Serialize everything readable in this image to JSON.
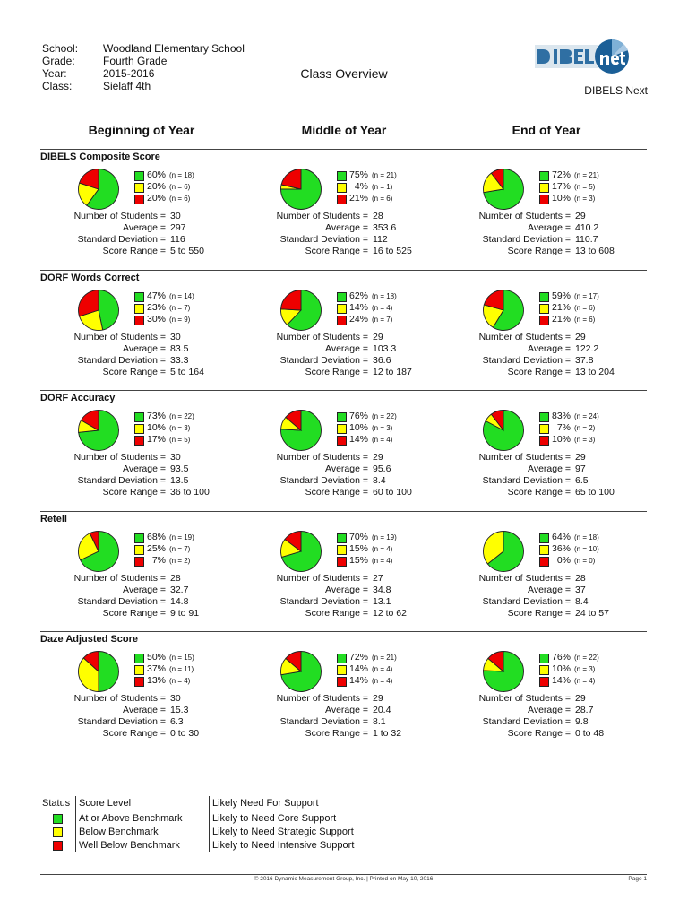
{
  "header": {
    "fields": [
      {
        "label": "School:",
        "value": "Woodland Elementary School"
      },
      {
        "label": "Grade:",
        "value": "Fourth Grade"
      },
      {
        "label": "Year:",
        "value": "2015-2016"
      },
      {
        "label": "Class:",
        "value": "Sielaff 4th"
      }
    ],
    "title": "Class Overview",
    "logo_text": "DIBELSnet",
    "subtitle": "DIBELS Next"
  },
  "periods": [
    "Beginning of Year",
    "Middle of Year",
    "End of Year"
  ],
  "stat_labels": [
    "Number of Students =",
    "Average =",
    "Standard Deviation =",
    "Score Range ="
  ],
  "colors": {
    "green": "#22dd22",
    "yellow": "#ffff00",
    "red": "#ee0000"
  },
  "chart_data": [
    {
      "type": "pie",
      "title": "DIBELS Composite Score",
      "periods": [
        {
          "slices": [
            {
              "pct": "60%",
              "n": "(n = 18)",
              "value": 18
            },
            {
              "pct": "20%",
              "n": "(n = 6)",
              "value": 6
            },
            {
              "pct": "20%",
              "n": "(n = 6)",
              "value": 6
            }
          ],
          "stats": [
            "30",
            "297",
            "116",
            "5 to 550"
          ]
        },
        {
          "slices": [
            {
              "pct": "75%",
              "n": "(n = 21)",
              "value": 21
            },
            {
              "pct": "4%",
              "n": "(n = 1)",
              "value": 1
            },
            {
              "pct": "21%",
              "n": "(n = 6)",
              "value": 6
            }
          ],
          "stats": [
            "28",
            "353.6",
            "112",
            "16 to 525"
          ]
        },
        {
          "slices": [
            {
              "pct": "72%",
              "n": "(n = 21)",
              "value": 21
            },
            {
              "pct": "17%",
              "n": "(n = 5)",
              "value": 5
            },
            {
              "pct": "10%",
              "n": "(n = 3)",
              "value": 3
            }
          ],
          "stats": [
            "29",
            "410.2",
            "110.7",
            "13 to 608"
          ]
        }
      ]
    },
    {
      "type": "pie",
      "title": "DORF Words Correct",
      "periods": [
        {
          "slices": [
            {
              "pct": "47%",
              "n": "(n = 14)",
              "value": 14
            },
            {
              "pct": "23%",
              "n": "(n = 7)",
              "value": 7
            },
            {
              "pct": "30%",
              "n": "(n = 9)",
              "value": 9
            }
          ],
          "stats": [
            "30",
            "83.5",
            "33.3",
            "5 to 164"
          ]
        },
        {
          "slices": [
            {
              "pct": "62%",
              "n": "(n = 18)",
              "value": 18
            },
            {
              "pct": "14%",
              "n": "(n = 4)",
              "value": 4
            },
            {
              "pct": "24%",
              "n": "(n = 7)",
              "value": 7
            }
          ],
          "stats": [
            "29",
            "103.3",
            "36.6",
            "12 to 187"
          ]
        },
        {
          "slices": [
            {
              "pct": "59%",
              "n": "(n = 17)",
              "value": 17
            },
            {
              "pct": "21%",
              "n": "(n = 6)",
              "value": 6
            },
            {
              "pct": "21%",
              "n": "(n = 6)",
              "value": 6
            }
          ],
          "stats": [
            "29",
            "122.2",
            "37.8",
            "13 to 204"
          ]
        }
      ]
    },
    {
      "type": "pie",
      "title": "DORF Accuracy",
      "periods": [
        {
          "slices": [
            {
              "pct": "73%",
              "n": "(n = 22)",
              "value": 22
            },
            {
              "pct": "10%",
              "n": "(n = 3)",
              "value": 3
            },
            {
              "pct": "17%",
              "n": "(n = 5)",
              "value": 5
            }
          ],
          "stats": [
            "30",
            "93.5",
            "13.5",
            "36 to 100"
          ]
        },
        {
          "slices": [
            {
              "pct": "76%",
              "n": "(n = 22)",
              "value": 22
            },
            {
              "pct": "10%",
              "n": "(n = 3)",
              "value": 3
            },
            {
              "pct": "14%",
              "n": "(n = 4)",
              "value": 4
            }
          ],
          "stats": [
            "29",
            "95.6",
            "8.4",
            "60 to 100"
          ]
        },
        {
          "slices": [
            {
              "pct": "83%",
              "n": "(n = 24)",
              "value": 24
            },
            {
              "pct": "7%",
              "n": "(n = 2)",
              "value": 2
            },
            {
              "pct": "10%",
              "n": "(n = 3)",
              "value": 3
            }
          ],
          "stats": [
            "29",
            "97",
            "6.5",
            "65 to 100"
          ]
        }
      ]
    },
    {
      "type": "pie",
      "title": "Retell",
      "periods": [
        {
          "slices": [
            {
              "pct": "68%",
              "n": "(n = 19)",
              "value": 19
            },
            {
              "pct": "25%",
              "n": "(n = 7)",
              "value": 7
            },
            {
              "pct": "7%",
              "n": "(n = 2)",
              "value": 2
            }
          ],
          "stats": [
            "28",
            "32.7",
            "14.8",
            "9 to 91"
          ]
        },
        {
          "slices": [
            {
              "pct": "70%",
              "n": "(n = 19)",
              "value": 19
            },
            {
              "pct": "15%",
              "n": "(n = 4)",
              "value": 4
            },
            {
              "pct": "15%",
              "n": "(n = 4)",
              "value": 4
            }
          ],
          "stats": [
            "27",
            "34.8",
            "13.1",
            "12 to 62"
          ]
        },
        {
          "slices": [
            {
              "pct": "64%",
              "n": "(n = 18)",
              "value": 18
            },
            {
              "pct": "36%",
              "n": "(n = 10)",
              "value": 10
            },
            {
              "pct": "0%",
              "n": "(n = 0)",
              "value": 0
            }
          ],
          "stats": [
            "28",
            "37",
            "8.4",
            "24 to 57"
          ]
        }
      ]
    },
    {
      "type": "pie",
      "title": "Daze Adjusted Score",
      "periods": [
        {
          "slices": [
            {
              "pct": "50%",
              "n": "(n = 15)",
              "value": 15
            },
            {
              "pct": "37%",
              "n": "(n = 11)",
              "value": 11
            },
            {
              "pct": "13%",
              "n": "(n = 4)",
              "value": 4
            }
          ],
          "stats": [
            "30",
            "15.3",
            "6.3",
            "0 to 30"
          ]
        },
        {
          "slices": [
            {
              "pct": "72%",
              "n": "(n = 21)",
              "value": 21
            },
            {
              "pct": "14%",
              "n": "(n = 4)",
              "value": 4
            },
            {
              "pct": "14%",
              "n": "(n = 4)",
              "value": 4
            }
          ],
          "stats": [
            "29",
            "20.4",
            "8.1",
            "1 to 32"
          ]
        },
        {
          "slices": [
            {
              "pct": "76%",
              "n": "(n = 22)",
              "value": 22
            },
            {
              "pct": "10%",
              "n": "(n = 3)",
              "value": 3
            },
            {
              "pct": "14%",
              "n": "(n = 4)",
              "value": 4
            }
          ],
          "stats": [
            "29",
            "28.7",
            "9.8",
            "0 to 48"
          ]
        }
      ]
    }
  ],
  "legend": {
    "headers": [
      "Status",
      "Score Level",
      "Likely Need For Support"
    ],
    "rows": [
      {
        "color": "#22dd22",
        "level": "At or Above Benchmark",
        "support": "Likely to Need Core Support"
      },
      {
        "color": "#ffff00",
        "level": "Below Benchmark",
        "support": "Likely to Need Strategic Support"
      },
      {
        "color": "#ee0000",
        "level": "Well Below Benchmark",
        "support": "Likely to Need Intensive Support"
      }
    ]
  },
  "footer": {
    "center": "© 2016 Dynamic Measurement Group, Inc. | Printed on May 10, 2016",
    "page": "Page 1"
  }
}
